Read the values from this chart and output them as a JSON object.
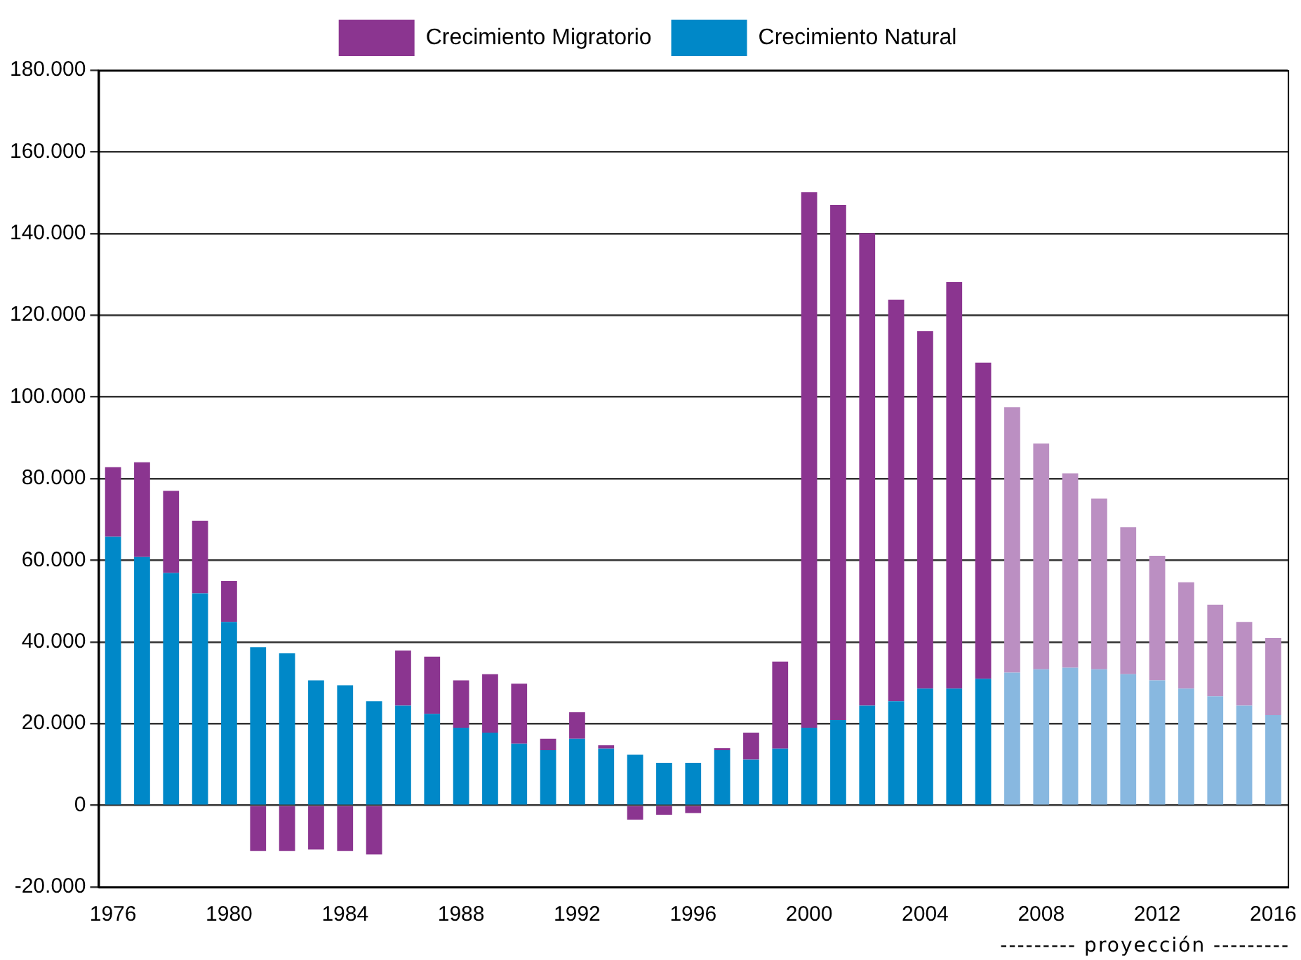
{
  "chart_data": {
    "type": "bar",
    "stacked": true,
    "legend": "top",
    "grid": "y",
    "categories": [
      "1976",
      null,
      null,
      null,
      "1980",
      null,
      null,
      null,
      "1984",
      null,
      null,
      null,
      "1988",
      null,
      null,
      null,
      "1992",
      null,
      null,
      null,
      "1996",
      null,
      null,
      null,
      "2000",
      null,
      null,
      null,
      "2004",
      null,
      null,
      null,
      "2008",
      null,
      null,
      null,
      "2012",
      null,
      null,
      null,
      "2016"
    ],
    "series": [
      {
        "name": "Crecimiento Natural",
        "color": "#0088c8",
        "colors": [
          "#0088c8",
          "#0088c8",
          "#0088c8",
          "#0088c8",
          "#0088c8",
          "#0088c8",
          "#0088c8",
          "#0088c8",
          "#0088c8",
          "#0088c8",
          "#0088c8",
          "#0088c8",
          "#0088c8",
          "#0088c8",
          "#0088c8",
          "#0088c8",
          "#0088c8",
          "#0088c8",
          "#0088c8",
          "#0088c8",
          "#0088c8",
          "#0088c8",
          "#0088c8",
          "#0088c8",
          "#0088c8",
          "#0088c8",
          "#0088c8",
          "#0088c8",
          "#0088c8",
          "#0088c8",
          "#0088c8",
          "#88b8e0",
          "#88b8e0",
          "#88b8e0",
          "#88b8e0",
          "#88b8e0",
          "#88b8e0",
          "#88b8e0",
          "#88b8e0",
          "#88b8e0",
          "#88b8e0"
        ],
        "values": [
          65800,
          60800,
          56900,
          51900,
          44900,
          38700,
          37200,
          30600,
          29400,
          25500,
          24400,
          22400,
          19000,
          17800,
          15100,
          13500,
          16300,
          13900,
          12400,
          10400,
          10400,
          13500,
          11200,
          13900,
          19000,
          20900,
          24400,
          25500,
          28600,
          28600,
          31000,
          32500,
          33300,
          33700,
          33300,
          32100,
          30600,
          28600,
          26700,
          24400,
          22100
        ]
      },
      {
        "name": "Crecimiento Migratorio",
        "color": "#8b3590",
        "colors": [
          "#8b3590",
          "#8b3590",
          "#8b3590",
          "#8b3590",
          "#8b3590",
          "#8b3590",
          "#8b3590",
          "#8b3590",
          "#8b3590",
          "#8b3590",
          "#8b3590",
          "#8b3590",
          "#8b3590",
          "#8b3590",
          "#8b3590",
          "#8b3590",
          "#8b3590",
          "#8b3590",
          "#8b3590",
          "#8b3590",
          "#8b3590",
          "#8b3590",
          "#8b3590",
          "#8b3590",
          "#8b3590",
          "#8b3590",
          "#8b3590",
          "#8b3590",
          "#8b3590",
          "#8b3590",
          "#8b3590",
          "#bb8fc2",
          "#bb8fc2",
          "#bb8fc2",
          "#bb8fc2",
          "#bb8fc2",
          "#bb8fc2",
          "#bb8fc2",
          "#bb8fc2",
          "#bb8fc2",
          "#bb8fc2"
        ],
        "values": [
          17000,
          23200,
          20100,
          17800,
          10000,
          -11200,
          -11200,
          -10800,
          -11200,
          -12000,
          13500,
          14000,
          11600,
          14300,
          14700,
          2800,
          6500,
          800,
          -3500,
          -2300,
          -1900,
          500,
          6600,
          21300,
          131100,
          126100,
          115700,
          98300,
          87500,
          99500,
          77400,
          65000,
          55300,
          47600,
          41800,
          36000,
          30500,
          26000,
          22400,
          20500,
          18900
        ]
      }
    ],
    "ylim": [
      -20000,
      180000
    ],
    "yticks": [
      {
        "value": -20000,
        "label": "-20.000"
      },
      {
        "value": 0,
        "label": "0"
      },
      {
        "value": 20000,
        "label": "20.000"
      },
      {
        "value": 40000,
        "label": "40.000"
      },
      {
        "value": 60000,
        "label": "60.000"
      },
      {
        "value": 80000,
        "label": "80.000"
      },
      {
        "value": 100000,
        "label": "100.000"
      },
      {
        "value": 120000,
        "label": "120.000"
      },
      {
        "value": 140000,
        "label": "140.000"
      },
      {
        "value": 160000,
        "label": "160.000"
      },
      {
        "value": 180000,
        "label": "180.000"
      }
    ],
    "annotations": [
      "--------- proyección ---------"
    ]
  }
}
